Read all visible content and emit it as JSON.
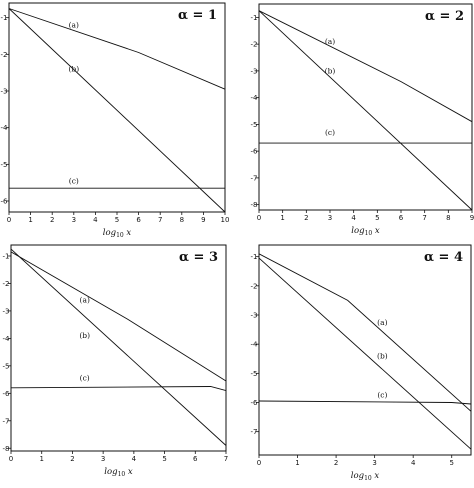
{
  "chart_data": [
    {
      "type": "line",
      "title": "α = 1",
      "xlabel_main": "log",
      "xlabel_sub": "10",
      "xlabel_var": "x",
      "ylabel": "",
      "xlim": [
        0,
        10
      ],
      "ylim": [
        -6.3,
        -0.6
      ],
      "xticks": [
        0,
        1,
        2,
        3,
        4,
        5,
        6,
        7,
        8,
        9,
        10
      ],
      "yticks": [
        -1,
        -2,
        -3,
        -4,
        -5,
        -6
      ],
      "series": [
        {
          "name": "(a)",
          "x": [
            0,
            6,
            10
          ],
          "y": [
            -0.75,
            -1.95,
            -2.95
          ],
          "label_at": [
            3.0,
            -1.2
          ]
        },
        {
          "name": "(b)",
          "x": [
            0,
            10
          ],
          "y": [
            -0.75,
            -6.3
          ],
          "label_at": [
            3.0,
            -2.4
          ]
        },
        {
          "name": "(c)",
          "x": [
            0,
            10
          ],
          "y": [
            -5.65,
            -5.65
          ],
          "label_at": [
            3.0,
            -5.45
          ]
        }
      ]
    },
    {
      "type": "line",
      "title": "α = 2",
      "xlabel_main": "log",
      "xlabel_sub": "10",
      "xlabel_var": "x",
      "ylabel": "",
      "xlim": [
        0,
        9
      ],
      "ylim": [
        -8.2,
        -0.5
      ],
      "xticks": [
        0,
        1,
        2,
        3,
        4,
        5,
        6,
        7,
        8,
        9
      ],
      "yticks": [
        -1,
        -2,
        -3,
        -4,
        -5,
        -6,
        -7,
        -8
      ],
      "series": [
        {
          "name": "(a)",
          "x": [
            0,
            6,
            9
          ],
          "y": [
            -0.75,
            -3.4,
            -4.9
          ],
          "label_at": [
            3.0,
            -1.9
          ]
        },
        {
          "name": "(b)",
          "x": [
            0,
            9
          ],
          "y": [
            -0.75,
            -8.2
          ],
          "label_at": [
            3.0,
            -3.0
          ]
        },
        {
          "name": "(c)",
          "x": [
            0,
            9
          ],
          "y": [
            -5.7,
            -5.7
          ],
          "label_at": [
            3.0,
            -5.3
          ]
        }
      ]
    },
    {
      "type": "line",
      "title": "α = 3",
      "xlabel_main": "log",
      "xlabel_sub": "10",
      "xlabel_var": "x",
      "ylabel": "",
      "xlim": [
        0,
        7
      ],
      "ylim": [
        -8.1,
        -0.6
      ],
      "xticks": [
        0,
        1,
        2,
        3,
        4,
        5,
        6,
        7
      ],
      "yticks": [
        -1,
        -2,
        -3,
        -4,
        -5,
        -6,
        -7,
        -8
      ],
      "series": [
        {
          "name": "(a)",
          "x": [
            0,
            3.8,
            7
          ],
          "y": [
            -0.85,
            -3.3,
            -5.55
          ],
          "label_at": [
            2.4,
            -2.6
          ]
        },
        {
          "name": "(b)",
          "x": [
            0,
            7
          ],
          "y": [
            -0.75,
            -7.9
          ],
          "label_at": [
            2.4,
            -3.9
          ]
        },
        {
          "name": "(c)",
          "x": [
            0,
            6.5,
            7
          ],
          "y": [
            -5.8,
            -5.75,
            -5.9
          ],
          "label_at": [
            2.4,
            -5.45
          ]
        }
      ]
    },
    {
      "type": "line",
      "title": "α = 4",
      "xlabel_main": "log",
      "xlabel_sub": "10",
      "xlabel_var": "x",
      "ylabel": "",
      "xlim": [
        0,
        5.5
      ],
      "ylim": [
        -7.8,
        -0.6
      ],
      "xticks": [
        0,
        1,
        2,
        3,
        4,
        5
      ],
      "yticks": [
        -1,
        -2,
        -3,
        -4,
        -5,
        -6,
        -7
      ],
      "series": [
        {
          "name": "(a)",
          "x": [
            0,
            2.3,
            5.5
          ],
          "y": [
            -0.9,
            -2.5,
            -6.3
          ],
          "label_at": [
            3.2,
            -3.25
          ]
        },
        {
          "name": "(b)",
          "x": [
            0,
            5.5
          ],
          "y": [
            -1.05,
            -7.6
          ],
          "label_at": [
            3.2,
            -4.4
          ]
        },
        {
          "name": "(c)",
          "x": [
            0,
            5,
            5.5
          ],
          "y": [
            -5.95,
            -6.0,
            -6.05
          ],
          "label_at": [
            3.2,
            -5.75
          ]
        }
      ]
    }
  ]
}
